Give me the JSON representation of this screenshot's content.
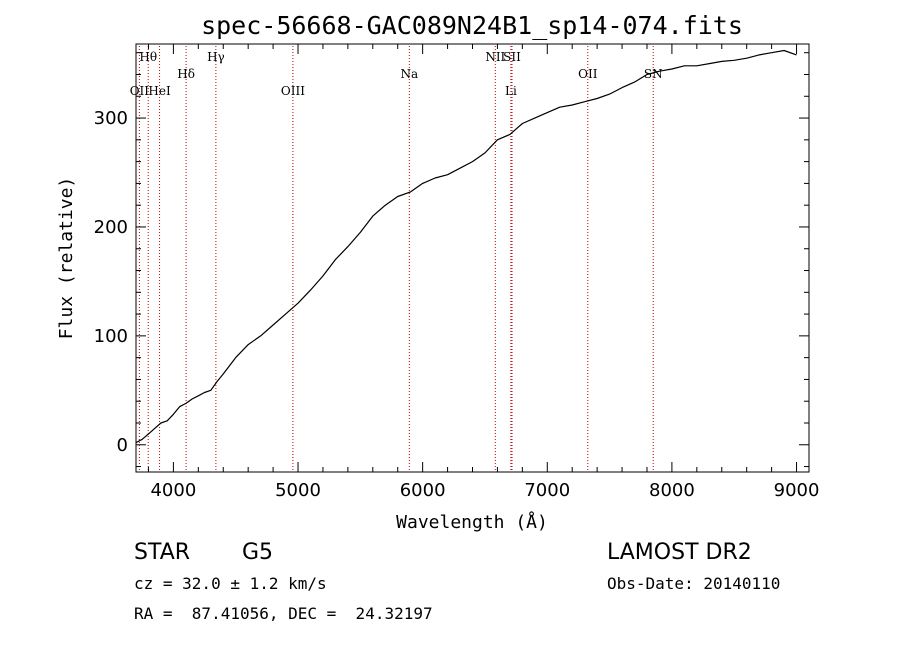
{
  "chart_data": {
    "type": "line",
    "title": "spec-56668-GAC089N24B1_sp14-074.fits",
    "xlabel": "Wavelength (Å)",
    "ylabel": "Flux (relative)",
    "xlim": [
      3700,
      9100
    ],
    "ylim": [
      -25,
      368
    ],
    "xticks": [
      4000,
      5000,
      6000,
      7000,
      8000,
      9000
    ],
    "yticks": [
      0,
      100,
      200,
      300
    ],
    "series": [
      {
        "name": "spectrum",
        "x": [
          3700,
          3750,
          3800,
          3850,
          3900,
          3950,
          4000,
          4050,
          4100,
          4150,
          4200,
          4250,
          4300,
          4350,
          4400,
          4500,
          4600,
          4700,
          4800,
          4900,
          5000,
          5100,
          5200,
          5300,
          5400,
          5500,
          5600,
          5700,
          5800,
          5900,
          6000,
          6100,
          6200,
          6300,
          6400,
          6500,
          6600,
          6700,
          6800,
          6900,
          7000,
          7100,
          7200,
          7300,
          7400,
          7500,
          7600,
          7700,
          7800,
          7900,
          8000,
          8100,
          8200,
          8300,
          8400,
          8500,
          8600,
          8700,
          8800,
          8900,
          9000
        ],
        "y": [
          2,
          5,
          10,
          15,
          20,
          22,
          28,
          35,
          38,
          42,
          45,
          48,
          50,
          58,
          65,
          80,
          92,
          100,
          110,
          120,
          130,
          142,
          155,
          170,
          182,
          195,
          210,
          220,
          228,
          232,
          240,
          245,
          248,
          254,
          260,
          268,
          280,
          285,
          295,
          300,
          305,
          310,
          312,
          315,
          318,
          322,
          328,
          333,
          340,
          343,
          345,
          348,
          348,
          350,
          352,
          353,
          355,
          358,
          360,
          362,
          358
        ]
      }
    ],
    "spectral_lines": [
      {
        "name": "Hθ",
        "wavelength": 3798,
        "row": 1
      },
      {
        "name": "OII",
        "wavelength": 3727,
        "row": 3
      },
      {
        "name": "HeI",
        "wavelength": 3889,
        "row": 3
      },
      {
        "name": "Hδ",
        "wavelength": 4102,
        "row": 2
      },
      {
        "name": "Hγ",
        "wavelength": 4341,
        "row": 1
      },
      {
        "name": "OIII",
        "wavelength": 4959,
        "row": 3
      },
      {
        "name": "Na",
        "wavelength": 5893,
        "row": 2
      },
      {
        "name": "NII",
        "wavelength": 6583,
        "row": 1
      },
      {
        "name": "SII",
        "wavelength": 6717,
        "row": 1
      },
      {
        "name": "Li",
        "wavelength": 6708,
        "row": 3
      },
      {
        "name": "OII",
        "wavelength": 7325,
        "row": 2
      },
      {
        "name": "SN",
        "wavelength": 7850,
        "row": 2
      }
    ],
    "grid": false
  },
  "info": {
    "object_class": "STAR",
    "subclass": "G5",
    "survey": "LAMOST DR2",
    "cz": "cz = 32.0 ± 1.2 km/s",
    "obs_date": "Obs-Date: 20140110",
    "coords": "RA =  87.41056, DEC =  24.32197"
  }
}
